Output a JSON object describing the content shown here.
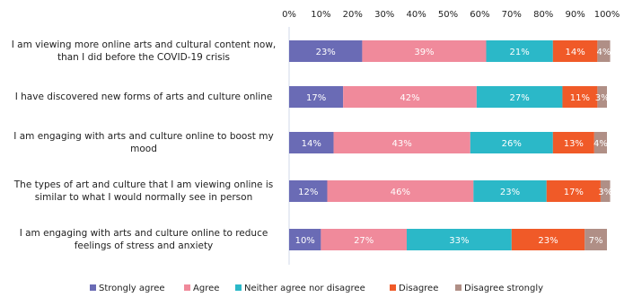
{
  "chart_data": {
    "type": "stacked-barh",
    "categories": [
      "I am viewing more online arts and cultural content now, than I did before the COVID-19 crisis",
      "I have discovered new forms of arts and culture online",
      "I am engaging with arts and culture online to boost my mood",
      "The types of art and culture that I am viewing online is similar to what I would normally see in person",
      "I am engaging with arts and culture online to reduce feelings of stress and anxiety"
    ],
    "series": [
      {
        "name": "Strongly agree",
        "color": "#6a6bb5",
        "values": [
          23,
          17,
          14,
          12,
          10
        ],
        "value_labels": [
          "23%",
          "17%",
          "14%",
          "12%",
          "10%"
        ]
      },
      {
        "name": "Agree",
        "color": "#f08a9b",
        "values": [
          39,
          42,
          43,
          46,
          27
        ],
        "value_labels": [
          "39%",
          "42%",
          "43%",
          "46%",
          "27%"
        ]
      },
      {
        "name": "Neither agree nor disagree",
        "color": "#2bb8c8",
        "values": [
          21,
          27,
          26,
          23,
          33
        ],
        "value_labels": [
          "21%",
          "27%",
          "26%",
          "23%",
          "33%"
        ]
      },
      {
        "name": "Disagree",
        "color": "#f05a28",
        "values": [
          14,
          11,
          13,
          17,
          23
        ],
        "value_labels": [
          "14%",
          "11%",
          "13%",
          "17%",
          "23%"
        ]
      },
      {
        "name": "Disagree strongly",
        "color": "#b08f86",
        "values": [
          4,
          3,
          4,
          3,
          7
        ],
        "value_labels": [
          "4%",
          "3%",
          "4%",
          "3%",
          "7%"
        ]
      }
    ],
    "xlim": [
      0,
      100
    ],
    "xticks": [
      {
        "value": 0,
        "label": "0%"
      },
      {
        "value": 10,
        "label": "10%"
      },
      {
        "value": 20,
        "label": "20%"
      },
      {
        "value": 30,
        "label": "30%"
      },
      {
        "value": 40,
        "label": "40%"
      },
      {
        "value": 50,
        "label": "50%"
      },
      {
        "value": 60,
        "label": "60%"
      },
      {
        "value": 70,
        "label": "70%"
      },
      {
        "value": 80,
        "label": "80%"
      },
      {
        "value": 90,
        "label": "90%"
      },
      {
        "value": 100,
        "label": "100%"
      }
    ],
    "legend": "bottom"
  }
}
